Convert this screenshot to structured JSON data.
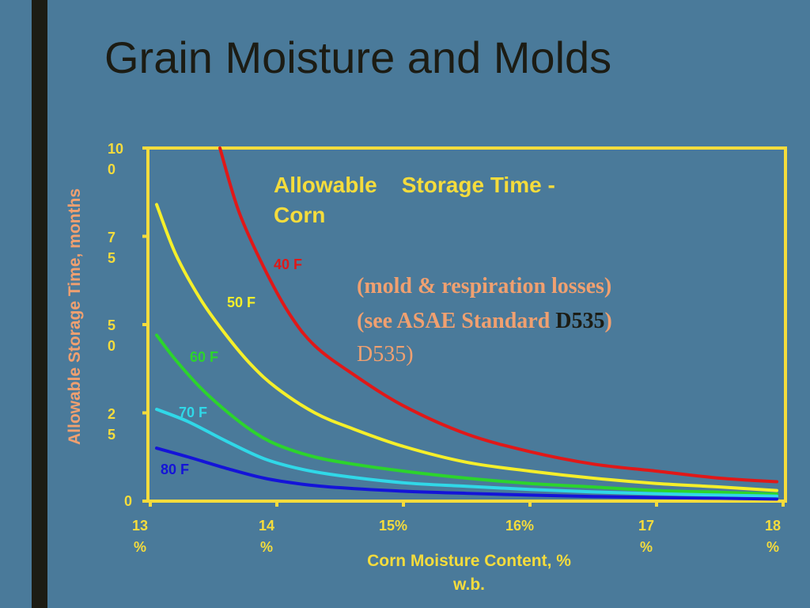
{
  "slide": {
    "title": "Grain Moisture and Molds"
  },
  "colors": {
    "background": "#4a7a9a",
    "accent_bar": "#1c1c14",
    "axis": "#f5dc3c",
    "ylabel": "#f0a070"
  },
  "chart_data": {
    "type": "line",
    "title": "Allowable    Storage Time -",
    "title_line2": "Corn",
    "xlabel_line1": "Corn Moisture Content, %",
    "xlabel_line2": "w.b.",
    "ylabel": "Allowable Storage Time, months",
    "xlim": [
      13,
      18
    ],
    "ylim": [
      0,
      100
    ],
    "grid": false,
    "x_ticks": [
      {
        "value": 13,
        "l1": "13",
        "l2": "%"
      },
      {
        "value": 14,
        "l1": "14",
        "l2": "%"
      },
      {
        "value": 15,
        "l1": "15%",
        "l2": ""
      },
      {
        "value": 16,
        "l1": "16%",
        "l2": ""
      },
      {
        "value": 17,
        "l1": "17",
        "l2": "%"
      },
      {
        "value": 18,
        "l1": "18",
        "l2": "%"
      }
    ],
    "y_ticks": [
      {
        "value": 100,
        "l1": "10",
        "l2": "0"
      },
      {
        "value": 75,
        "l1": "7",
        "l2": "5"
      },
      {
        "value": 50,
        "l1": "5",
        "l2": "0"
      },
      {
        "value": 25,
        "l1": "2",
        "l2": "5"
      },
      {
        "value": 0,
        "l1": "0",
        "l2": ""
      }
    ],
    "annotation_line1": "(mold & respiration losses)",
    "annotation_line2": "(see ASAE Standard ",
    "annotation_line2_dark": "D535",
    "annotation_line2_end": ")",
    "annotation_line3": "D535)",
    "series": [
      {
        "name": "40 F",
        "color": "#e01818",
        "x": [
          13.55,
          13.7,
          13.9,
          14.1,
          14.3,
          14.6,
          15.0,
          15.5,
          16.0,
          16.5,
          17.0,
          17.5,
          17.95
        ],
        "values": [
          100,
          82,
          66,
          53,
          44,
          36,
          27,
          19,
          14,
          10.5,
          8.5,
          6.5,
          5.5
        ]
      },
      {
        "name": "50 F",
        "color": "#f5ef2a",
        "x": [
          13.05,
          13.2,
          13.4,
          13.6,
          13.8,
          14.0,
          14.3,
          14.6,
          15.0,
          15.5,
          16.0,
          16.5,
          17.0,
          17.5,
          17.95
        ],
        "values": [
          84,
          70,
          57,
          47,
          38.5,
          32,
          25,
          20.5,
          15.5,
          11,
          8.5,
          6.5,
          5,
          4,
          3
        ]
      },
      {
        "name": "60 F",
        "color": "#2cd42c",
        "x": [
          13.05,
          13.2,
          13.4,
          13.6,
          13.8,
          14.0,
          14.3,
          14.6,
          15.0,
          15.5,
          16.0,
          16.5,
          17.0,
          17.5,
          17.95
        ],
        "values": [
          47,
          40,
          32,
          25.5,
          20,
          16,
          12.5,
          10.5,
          8.5,
          6.5,
          5,
          4,
          3,
          2.5,
          2
        ]
      },
      {
        "name": "70 F",
        "color": "#30d8e8",
        "x": [
          13.05,
          13.3,
          13.6,
          13.9,
          14.2,
          14.5,
          15.0,
          15.5,
          16.0,
          16.5,
          17.0,
          17.5,
          17.95
        ],
        "values": [
          26,
          22.5,
          17,
          12,
          9,
          7.2,
          5.2,
          4.2,
          3.3,
          2.6,
          2.1,
          1.7,
          1.4
        ]
      },
      {
        "name": "80 F",
        "color": "#1414d8",
        "x": [
          13.05,
          13.3,
          13.6,
          13.9,
          14.2,
          14.5,
          15.0,
          15.5,
          16.0,
          16.5,
          17.0,
          17.5,
          17.95
        ],
        "values": [
          15,
          12.5,
          9.3,
          6.5,
          4.8,
          3.8,
          2.8,
          2.2,
          1.7,
          1.3,
          1.0,
          0.8,
          0.6
        ]
      }
    ]
  }
}
